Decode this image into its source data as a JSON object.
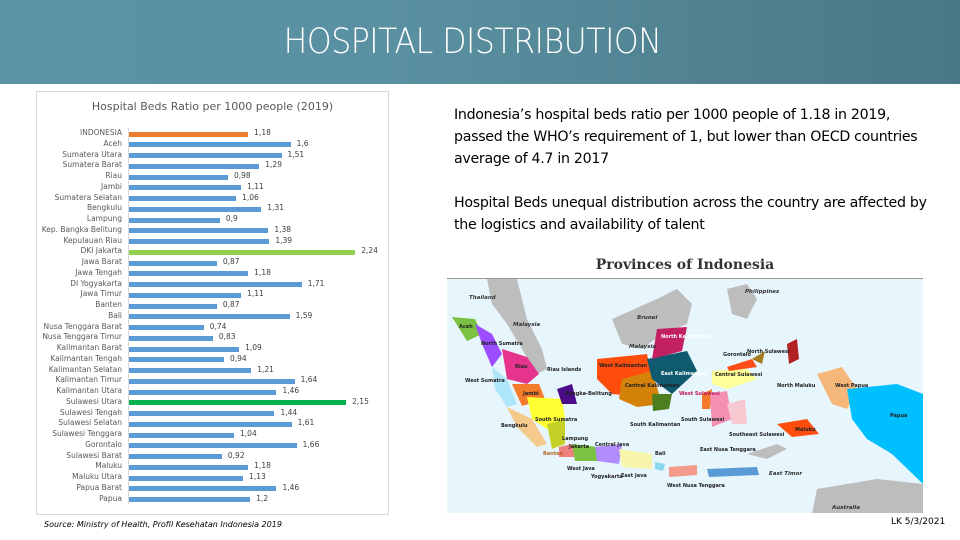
{
  "header": {
    "title": "HOSPITAL DISTRIBUTION",
    "background_color": "#5a91a2"
  },
  "chart": {
    "title": "Hospital Beds Ratio per 1000 people (2019)",
    "source": "Source: Ministry of Health, Profil Kesehatan Indonesia 2019"
  },
  "chart_data": {
    "type": "bar",
    "orientation": "horizontal",
    "title": "Hospital Beds Ratio per 1000 people (2019)",
    "xlabel": "",
    "ylabel": "",
    "xlim": [
      0,
      2.3
    ],
    "grid": false,
    "legend": null,
    "colors": {
      "default": "#5b9bd5",
      "national": "#ed7d31",
      "highest": "#92d050",
      "second_highest": "#00b050"
    },
    "categories": [
      "INDONESIA",
      "Aceh",
      "Sumatera Utara",
      "Sumatera Barat",
      "Riau",
      "Jambi",
      "Sumatera Selatan",
      "Bengkulu",
      "Lampung",
      "Kep. Bangka Belitung",
      "Kepulauan Riau",
      "DKI Jakarta",
      "Jawa Barat",
      "Jawa Tengah",
      "DI Yogyakarta",
      "Jawa Timur",
      "Banten",
      "Bali",
      "Nusa Tenggara Barat",
      "Nusa Tenggara Timur",
      "Kalimantan Barat",
      "Kalimantan Tengah",
      "Kalimantan Selatan",
      "Kalimantan Timur",
      "Kalimantan Utara",
      "Sulawesi Utara",
      "Sulawesi Tengah",
      "Sulawesi Selatan",
      "Sulawesi Tenggara",
      "Gorontalo",
      "Sulawesi Barat",
      "Maluku",
      "Maluku Utara",
      "Papua Barat",
      "Papua"
    ],
    "values": [
      1.18,
      1.6,
      1.51,
      1.29,
      0.98,
      1.11,
      1.06,
      1.31,
      0.9,
      1.38,
      1.39,
      2.24,
      0.87,
      1.18,
      1.71,
      1.11,
      0.87,
      1.59,
      0.74,
      0.83,
      1.09,
      0.94,
      1.21,
      1.64,
      1.46,
      2.15,
      1.44,
      1.61,
      1.04,
      1.66,
      0.92,
      1.18,
      1.13,
      1.46,
      1.2
    ],
    "value_labels": [
      "1,18",
      "1,6",
      "1,51",
      "1,29",
      "0,98",
      "1,11",
      "1,06",
      "1,31",
      "0,9",
      "1,38",
      "1,39",
      "2,24",
      "0,87",
      "1,18",
      "1,71",
      "1,11",
      "0,87",
      "1,59",
      "0,74",
      "0,83",
      "1,09",
      "0,94",
      "1,21",
      "1,64",
      "1,46",
      "2,15",
      "1,44",
      "1,61",
      "1,04",
      "1,66",
      "0,92",
      "1,18",
      "1,13",
      "1,46",
      "1,2"
    ],
    "bar_colors": [
      "#ed7d31",
      "#5b9bd5",
      "#5b9bd5",
      "#5b9bd5",
      "#5b9bd5",
      "#5b9bd5",
      "#5b9bd5",
      "#5b9bd5",
      "#5b9bd5",
      "#5b9bd5",
      "#5b9bd5",
      "#92d050",
      "#5b9bd5",
      "#5b9bd5",
      "#5b9bd5",
      "#5b9bd5",
      "#5b9bd5",
      "#5b9bd5",
      "#5b9bd5",
      "#5b9bd5",
      "#5b9bd5",
      "#5b9bd5",
      "#5b9bd5",
      "#5b9bd5",
      "#5b9bd5",
      "#00b050",
      "#5b9bd5",
      "#5b9bd5",
      "#5b9bd5",
      "#5b9bd5",
      "#5b9bd5",
      "#5b9bd5",
      "#5b9bd5",
      "#5b9bd5",
      "#5b9bd5"
    ]
  },
  "text": {
    "paragraph1": "Indonesia’s hospital beds ratio per 1000 people of 1.18 in 2019, passed the WHO’s requirement of 1, but lower than OECD countries average of 4.7 in 2017",
    "paragraph2": "Hospital Beds unequal distribution across the country are affected by the logistics and availability of talent"
  },
  "map": {
    "title": "Provinces of Indonesia",
    "countries": [
      "Thailand",
      "Malaysia",
      "Brunei",
      "Malaysia",
      "Philippines",
      "East Timor",
      "Australia"
    ],
    "provinces": [
      "Aceh",
      "North Sumatra",
      "Riau",
      "Riau Islands",
      "West Sumatra",
      "Jambi",
      "Bangka-Belitung",
      "South Sumatra",
      "Bengkulu",
      "Lampung",
      "Jakarta",
      "Banten",
      "West Java",
      "Central Java",
      "Yogyakarta",
      "East Java",
      "Bali",
      "West Nusa Tenggara",
      "East Nusa Tenggara",
      "West Kalimantan",
      "Central Kalimantan",
      "South Kalimantan",
      "East Kalimantan",
      "North Kalimantan",
      "Gorontalo",
      "North Sulawesi",
      "Central Sulawesi",
      "West Sulawesi",
      "South Sulawesi",
      "Southeast Sulawesi",
      "North Maluku",
      "Maluku",
      "West Papua",
      "Papua"
    ]
  },
  "footer": {
    "date": "LK 5/3/2021"
  }
}
